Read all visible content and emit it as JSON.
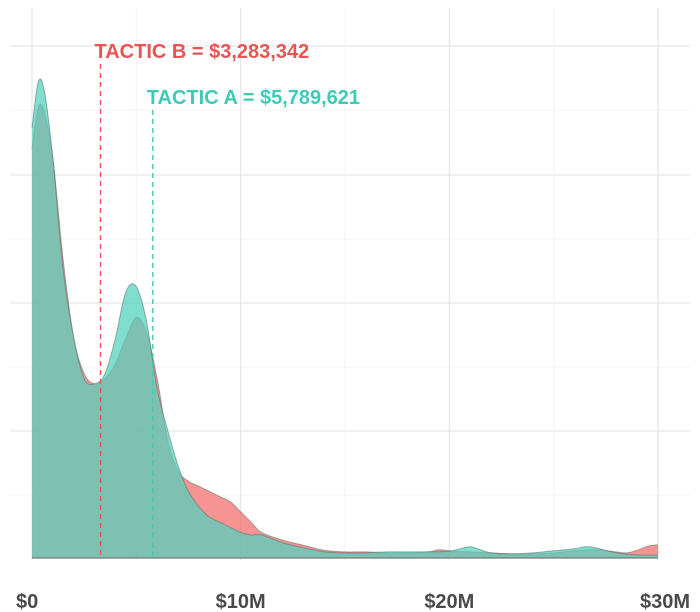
{
  "chart_data": {
    "type": "area",
    "xlim": [
      0,
      30000000
    ],
    "x_ticks": [
      {
        "value": 0,
        "label": "$0"
      },
      {
        "value": 10000000,
        "label": "$10M"
      },
      {
        "value": 20000000,
        "label": "$20M"
      },
      {
        "value": 30000000,
        "label": "$30M"
      }
    ],
    "grid": true,
    "series": [
      {
        "key": "tactic_b",
        "color": "#f26b6b",
        "points": [
          [
            0,
            0.8
          ],
          [
            300000,
            0.88
          ],
          [
            600000,
            0.87
          ],
          [
            1000000,
            0.78
          ],
          [
            1500000,
            0.58
          ],
          [
            2000000,
            0.43
          ],
          [
            2500000,
            0.36
          ],
          [
            3000000,
            0.34
          ],
          [
            3500000,
            0.35
          ],
          [
            4000000,
            0.38
          ],
          [
            4500000,
            0.43
          ],
          [
            5000000,
            0.47
          ],
          [
            5500000,
            0.44
          ],
          [
            6000000,
            0.35
          ],
          [
            6500000,
            0.23
          ],
          [
            7000000,
            0.17
          ],
          [
            7500000,
            0.15
          ],
          [
            8000000,
            0.14
          ],
          [
            8500000,
            0.13
          ],
          [
            9000000,
            0.12
          ],
          [
            9500000,
            0.11
          ],
          [
            10000000,
            0.09
          ],
          [
            10500000,
            0.07
          ],
          [
            11000000,
            0.05
          ],
          [
            12000000,
            0.035
          ],
          [
            13000000,
            0.025
          ],
          [
            14000000,
            0.015
          ],
          [
            15000000,
            0.012
          ],
          [
            16000000,
            0.012
          ],
          [
            17000000,
            0.01
          ],
          [
            18000000,
            0.01
          ],
          [
            19000000,
            0.012
          ],
          [
            19500000,
            0.016
          ],
          [
            20000000,
            0.014
          ],
          [
            21000000,
            0.012
          ],
          [
            22000000,
            0.01
          ],
          [
            23000000,
            0.008
          ],
          [
            24000000,
            0.008
          ],
          [
            25000000,
            0.01
          ],
          [
            26000000,
            0.014
          ],
          [
            27000000,
            0.016
          ],
          [
            28000000,
            0.012
          ],
          [
            28500000,
            0.01
          ],
          [
            29000000,
            0.015
          ],
          [
            29500000,
            0.023
          ],
          [
            30000000,
            0.026
          ]
        ]
      },
      {
        "key": "tactic_a",
        "color": "#4fd1bd",
        "points": [
          [
            0,
            0.84
          ],
          [
            300000,
            0.93
          ],
          [
            600000,
            0.91
          ],
          [
            1000000,
            0.78
          ],
          [
            1500000,
            0.56
          ],
          [
            2000000,
            0.43
          ],
          [
            2500000,
            0.35
          ],
          [
            3000000,
            0.34
          ],
          [
            3500000,
            0.36
          ],
          [
            4000000,
            0.43
          ],
          [
            4500000,
            0.52
          ],
          [
            5000000,
            0.53
          ],
          [
            5500000,
            0.46
          ],
          [
            6000000,
            0.33
          ],
          [
            6500000,
            0.25
          ],
          [
            7000000,
            0.18
          ],
          [
            7500000,
            0.13
          ],
          [
            8000000,
            0.1
          ],
          [
            8500000,
            0.08
          ],
          [
            9000000,
            0.07
          ],
          [
            9500000,
            0.06
          ],
          [
            10000000,
            0.05
          ],
          [
            10500000,
            0.045
          ],
          [
            11000000,
            0.045
          ],
          [
            12000000,
            0.03
          ],
          [
            13000000,
            0.02
          ],
          [
            14000000,
            0.012
          ],
          [
            15000000,
            0.01
          ],
          [
            16000000,
            0.01
          ],
          [
            17000000,
            0.012
          ],
          [
            18000000,
            0.012
          ],
          [
            19000000,
            0.012
          ],
          [
            20000000,
            0.013
          ],
          [
            20500000,
            0.018
          ],
          [
            21000000,
            0.022
          ],
          [
            21500000,
            0.016
          ],
          [
            22000000,
            0.01
          ],
          [
            23000000,
            0.008
          ],
          [
            24000000,
            0.01
          ],
          [
            25000000,
            0.014
          ],
          [
            26000000,
            0.018
          ],
          [
            26500000,
            0.022
          ],
          [
            27000000,
            0.02
          ],
          [
            28000000,
            0.01
          ],
          [
            29000000,
            0.006
          ],
          [
            30000000,
            0.006
          ]
        ]
      }
    ],
    "annotations": [
      {
        "series": "tactic_b",
        "text": "TACTIC B = $3,283,342",
        "x": 3283342,
        "color": "#e85454"
      },
      {
        "series": "tactic_a",
        "text": "TACTIC A = $5,789,621",
        "x": 5789621,
        "color": "#3ecbb5"
      }
    ]
  }
}
